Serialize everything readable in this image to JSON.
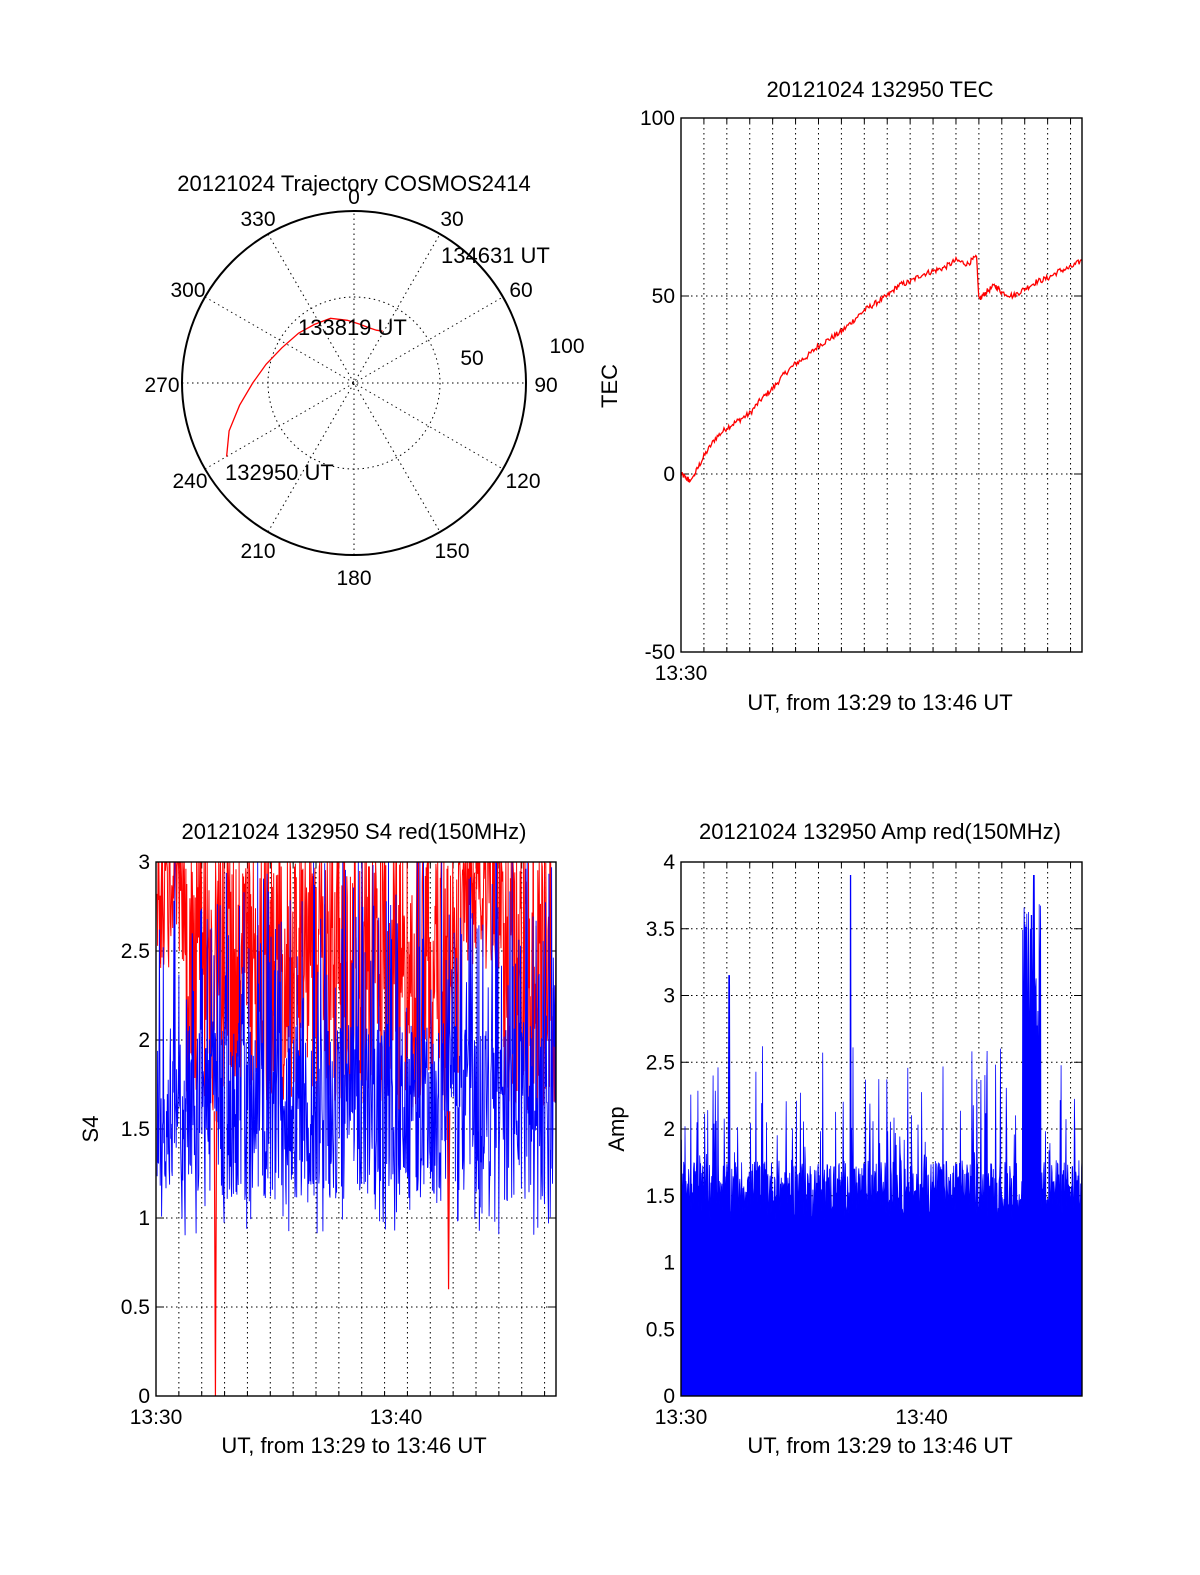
{
  "chart_data": [
    {
      "type": "polar",
      "title": "20121024 Trajectory COSMOS2414",
      "angle_labels": [
        "0",
        "30",
        "60",
        "90",
        "120",
        "150",
        "180",
        "210",
        "240",
        "270",
        "300",
        "330"
      ],
      "radial_labels": [
        "50",
        "100"
      ],
      "rlim": [
        0,
        100
      ],
      "grid": true,
      "series": [
        {
          "color": "#ff0000",
          "points": [
            {
              "az": 240,
              "el": 13
            },
            {
              "az": 249,
              "el": 20
            },
            {
              "az": 259,
              "el": 29
            },
            {
              "az": 270,
              "el": 37
            },
            {
              "az": 282,
              "el": 43
            },
            {
              "az": 296,
              "el": 48
            },
            {
              "az": 312,
              "el": 51
            },
            {
              "az": 326,
              "el": 53
            },
            {
              "az": 340,
              "el": 54
            },
            {
              "az": 354,
              "el": 57
            },
            {
              "az": 5,
              "el": 59
            },
            {
              "az": 14,
              "el": 60
            },
            {
              "az": 23,
              "el": 60
            },
            {
              "az": 29,
              "el": 59
            }
          ]
        }
      ],
      "annotations": [
        {
          "text": "134631 UT",
          "az": 29,
          "el": 59
        },
        {
          "text": "133819 UT",
          "az": 356,
          "el": 26
        },
        {
          "text": "132950 UT",
          "az": 242,
          "el": 13
        }
      ]
    },
    {
      "type": "line",
      "title": "20121024 132950 TEC",
      "xlabel": "UT, from 13:29 to 13:46 UT",
      "ylabel": "TEC",
      "xlim": [
        0,
        17.5
      ],
      "ylim": [
        -50,
        100
      ],
      "xtick_labels": [
        {
          "at": 0,
          "label": "13:30"
        }
      ],
      "ytick_labels": [
        "-50",
        "0",
        "50",
        "100"
      ],
      "grid": true,
      "series": [
        {
          "color": "#ff0000",
          "x": [
            0,
            0.2,
            0.4,
            0.6,
            1,
            1.5,
            2,
            2.5,
            3,
            3.5,
            4,
            4.5,
            5,
            5.5,
            6,
            6.5,
            7,
            7.5,
            8,
            8.5,
            9,
            9.5,
            10,
            10.5,
            11,
            11.5,
            12,
            12.5,
            12.9,
            13.0,
            13.3,
            13.7,
            14,
            14.5,
            15,
            15.5,
            16,
            16.5,
            17,
            17.5
          ],
          "y": [
            0,
            -1,
            -2,
            0,
            5,
            10,
            13,
            15,
            17,
            21,
            24,
            28,
            31,
            33,
            36,
            38,
            40,
            43,
            46,
            48,
            50,
            53,
            54,
            56,
            57,
            58,
            60,
            59,
            61,
            49,
            51,
            53,
            51,
            50,
            52,
            54,
            55,
            57,
            58,
            60
          ]
        }
      ]
    },
    {
      "type": "line",
      "title": "20121024 132950 S4 red(150MHz)",
      "xlabel": "UT, from 13:29 to 13:46 UT",
      "ylabel": "S4",
      "xlim": [
        0,
        17.5
      ],
      "ylim": [
        0,
        3
      ],
      "xtick_labels": [
        {
          "at": 0,
          "label": "13:30"
        },
        {
          "at": 10.5,
          "label": "13:40"
        }
      ],
      "ytick_labels": [
        "0",
        "0.5",
        "1",
        "1.5",
        "2",
        "2.5",
        "3"
      ],
      "grid": true,
      "series": [
        {
          "color": "#0000ff",
          "range": [
            0.8,
            3.0
          ],
          "center": 1.6
        },
        {
          "color": "#ff0000",
          "range": [
            1.5,
            3.0
          ],
          "dips": [
            {
              "x": 2.6,
              "y": 0
            },
            {
              "x": 12.8,
              "y": 0.6
            }
          ]
        }
      ]
    },
    {
      "type": "area",
      "title": "20121024 132950 Amp red(150MHz)",
      "xlabel": "UT, from 13:29 to 13:46 UT",
      "ylabel": "Amp",
      "xlim": [
        0,
        17.5
      ],
      "ylim": [
        0,
        4
      ],
      "xtick_labels": [
        {
          "at": 0,
          "label": "13:30"
        },
        {
          "at": 10.5,
          "label": "13:40"
        }
      ],
      "ytick_labels": [
        "0",
        "0.5",
        "1",
        "1.5",
        "2",
        "2.5",
        "3",
        "3.5",
        "4"
      ],
      "grid": true,
      "series": [
        {
          "color": "#0000ff",
          "baseline": 1.5,
          "peaks": [
            {
              "x": 2.1,
              "y": 3.15
            },
            {
              "x": 7.4,
              "y": 3.9
            },
            {
              "x": 15.4,
              "y": 3.9
            },
            {
              "x": 15.3,
              "y": 3.6
            }
          ]
        }
      ]
    }
  ]
}
